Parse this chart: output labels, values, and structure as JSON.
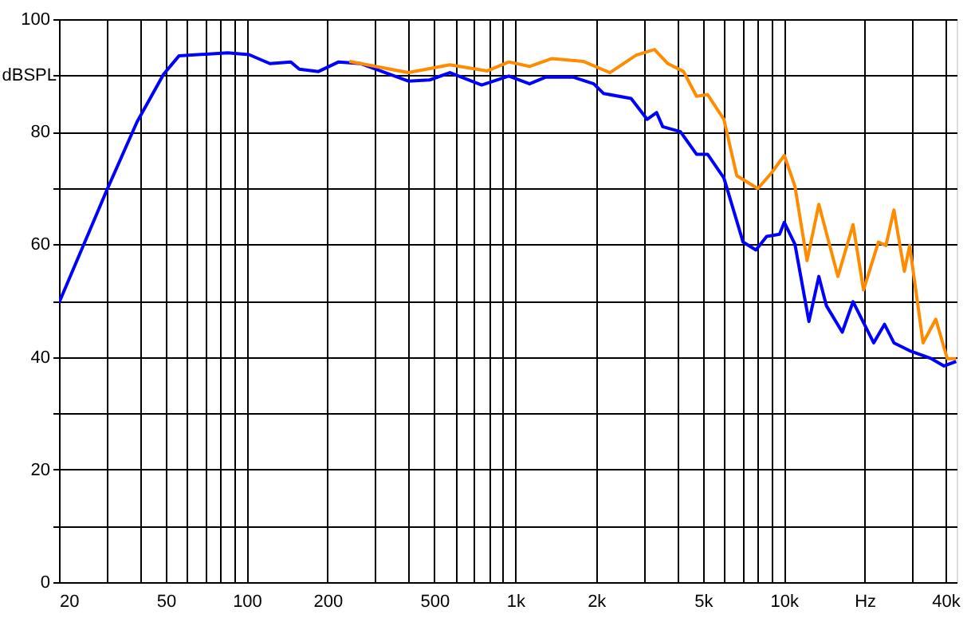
{
  "chart_data": {
    "type": "line",
    "ylabel": "dBSPL",
    "log": "x",
    "grid": true,
    "marker": "none",
    "line_style": "solid",
    "xlim": [
      20,
      44000
    ],
    "ylim": [
      0,
      100
    ],
    "xticks": [
      20,
      {
        "value": 30,
        "label": null
      },
      {
        "value": 40,
        "label": null
      },
      50,
      {
        "value": 60,
        "label": null
      },
      {
        "value": 70,
        "label": null
      },
      {
        "value": 80,
        "label": null
      },
      {
        "value": 90,
        "label": null
      },
      100,
      200,
      {
        "value": 300,
        "label": null
      },
      {
        "value": 400,
        "label": null
      },
      500,
      {
        "value": 600,
        "label": null
      },
      {
        "value": 700,
        "label": null
      },
      {
        "value": 800,
        "label": null
      },
      {
        "value": 900,
        "label": null
      },
      {
        "value": 1000,
        "label": "1k"
      },
      {
        "value": 2000,
        "label": "2k"
      },
      {
        "value": 3000,
        "label": null
      },
      {
        "value": 4000,
        "label": null
      },
      {
        "value": 5000,
        "label": "5k"
      },
      {
        "value": 6000,
        "label": null
      },
      {
        "value": 7000,
        "label": null
      },
      {
        "value": 8000,
        "label": null
      },
      {
        "value": 9000,
        "label": null
      },
      {
        "value": 10000,
        "label": "10k"
      },
      {
        "value": 20000,
        "label": "Hz"
      },
      {
        "value": 30000,
        "label": null
      },
      {
        "value": 40000,
        "label": "40k"
      }
    ],
    "yticks": [
      0,
      {
        "value": 10,
        "label": null
      },
      20,
      {
        "value": 30,
        "label": null
      },
      40,
      {
        "value": 50,
        "label": null
      },
      60,
      {
        "value": 70,
        "label": null
      },
      80,
      {
        "value": 90,
        "label": null
      },
      100
    ],
    "series": [
      {
        "color": "#0000ff",
        "x": [
          20,
          30,
          39,
          49,
          56,
          85,
          102,
          122,
          146,
          157,
          185,
          220,
          266,
          400,
          480,
          571,
          750,
          946,
          1130,
          1300,
          1640,
          1960,
          2130,
          2700,
          3100,
          3360,
          3540,
          4120,
          4730,
          5200,
          5980,
          7050,
          7870,
          8630,
          9640,
          10040,
          11000,
          12400,
          13500,
          14400,
          16500,
          18100,
          21600,
          23700,
          25700,
          29400,
          35400,
          39500,
          43800
        ],
        "values": [
          49.6,
          69.4,
          81.7,
          90.2,
          93.5,
          94.0,
          93.7,
          92.1,
          92.4,
          91.1,
          90.7,
          92.4,
          92.1,
          89.0,
          89.2,
          90.5,
          88.3,
          89.9,
          88.5,
          89.7,
          89.7,
          88.5,
          86.8,
          85.9,
          82.2,
          83.4,
          80.9,
          80.0,
          76.0,
          76.0,
          71.8,
          60.4,
          59.0,
          61.4,
          61.8,
          63.9,
          60.0,
          46.3,
          54.3,
          49.1,
          44.4,
          49.8,
          42.5,
          45.8,
          42.5,
          41.1,
          39.7,
          38.4,
          39.2
        ]
      },
      {
        "color": "#ff8c00",
        "x": [
          241,
          400,
          571,
          787,
          946,
          1130,
          1370,
          1790,
          2250,
          2820,
          3300,
          3700,
          4230,
          4730,
          5200,
          5980,
          6680,
          8000,
          9000,
          10040,
          11000,
          12200,
          13500,
          15900,
          18100,
          19800,
          22500,
          24000,
          25700,
          28100,
          29400,
          33000,
          36800,
          40600,
          43800
        ],
        "values": [
          92.5,
          90.5,
          91.9,
          90.8,
          92.4,
          91.6,
          93.0,
          92.5,
          90.5,
          93.6,
          94.6,
          92.1,
          90.7,
          86.3,
          86.6,
          82.2,
          72.2,
          69.9,
          72.7,
          75.8,
          70.3,
          57.1,
          67.1,
          54.3,
          63.5,
          51.9,
          60.4,
          59.8,
          66.1,
          55.2,
          59.8,
          42.5,
          46.7,
          39.7,
          39.7
        ]
      }
    ]
  }
}
